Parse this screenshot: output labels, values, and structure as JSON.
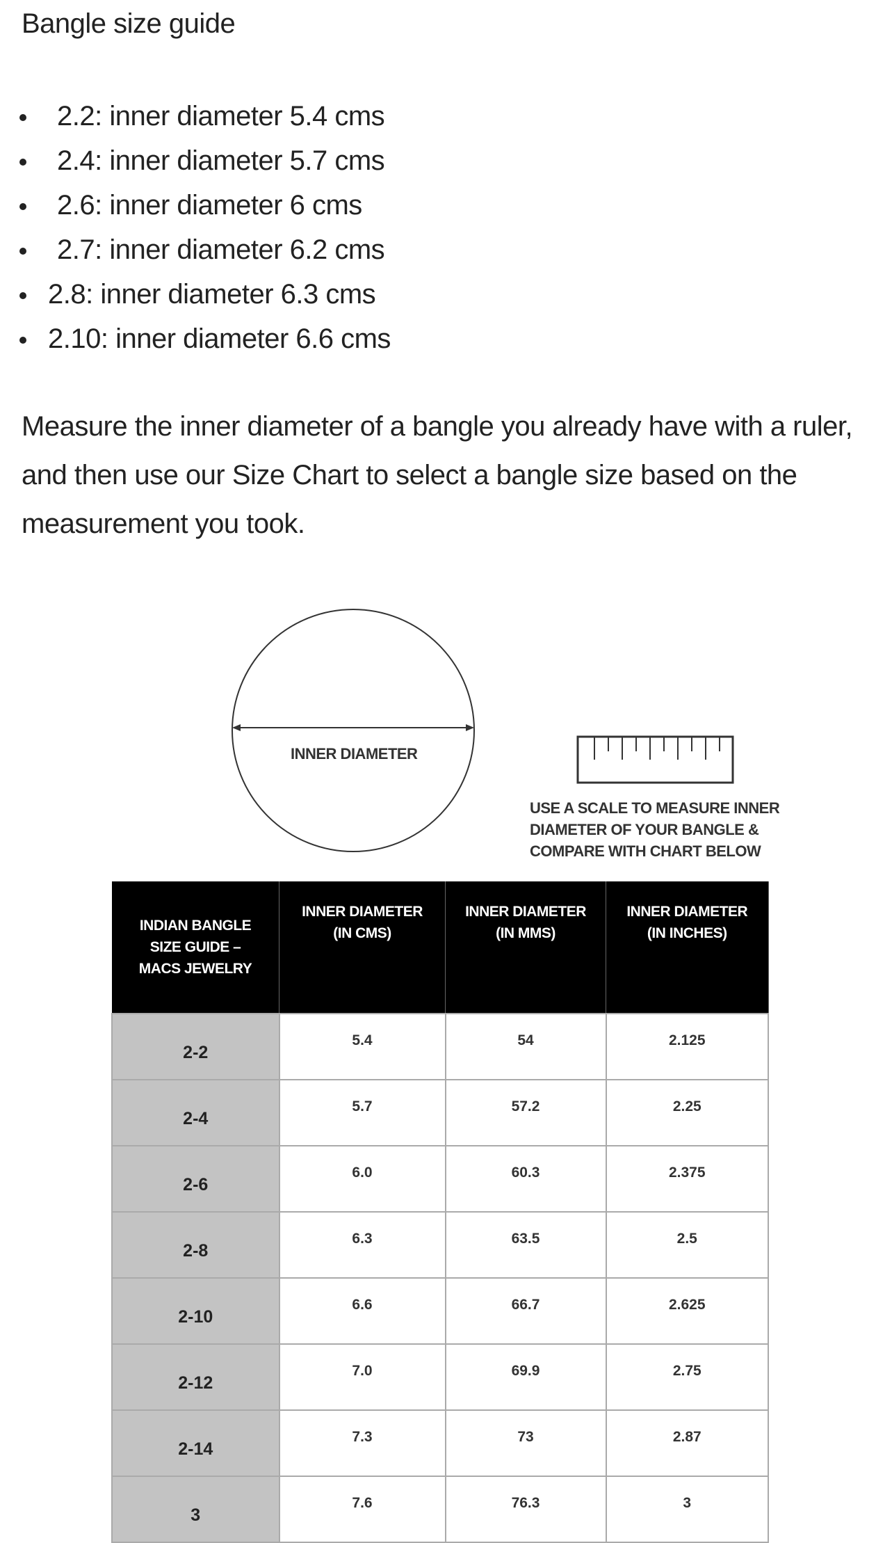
{
  "title": "Bangle size guide",
  "bullets": [
    "2.2: inner diameter 5.4 cms",
    "2.4: inner diameter 5.7 cms",
    "2.6: inner diameter 6 cms",
    "2.7: inner diameter 6.2 cms",
    "2.8: inner diameter 6.3 cms",
    "2.10: inner diameter 6.6 cms"
  ],
  "paragraph": "Measure the inner diameter of a bangle you already have with a ruler, and then use our Size Chart to select a bangle size based on the measurement you took.",
  "diagram": {
    "inner_label": "INNER DIAMETER",
    "caption": [
      "USE A SCALE TO MEASURE INNER",
      "DIAMETER OF YOUR BANGLE &",
      "COMPARE WITH CHART BELOW"
    ]
  },
  "table": {
    "headers": [
      [
        "INDIAN BANGLE",
        "SIZE GUIDE –",
        "MACS JEWELRY"
      ],
      [
        "INNER DIAMETER",
        "(IN CMS)"
      ],
      [
        "INNER DIAMETER",
        "(IN MMS)"
      ],
      [
        "INNER DIAMETER",
        "(IN INCHES)"
      ]
    ],
    "rows": [
      [
        "2-2",
        "5.4",
        "54",
        "2.125"
      ],
      [
        "2-4",
        "5.7",
        "57.2",
        "2.25"
      ],
      [
        "2-6",
        "6.0",
        "60.3",
        "2.375"
      ],
      [
        "2-8",
        "6.3",
        "63.5",
        "2.5"
      ],
      [
        "2-10",
        "6.6",
        "66.7",
        "2.625"
      ],
      [
        "2-12",
        "7.0",
        "69.9",
        "2.75"
      ],
      [
        "2-14",
        "7.3",
        "73",
        "2.87"
      ],
      [
        "3",
        "7.6",
        "76.3",
        "3"
      ]
    ]
  }
}
